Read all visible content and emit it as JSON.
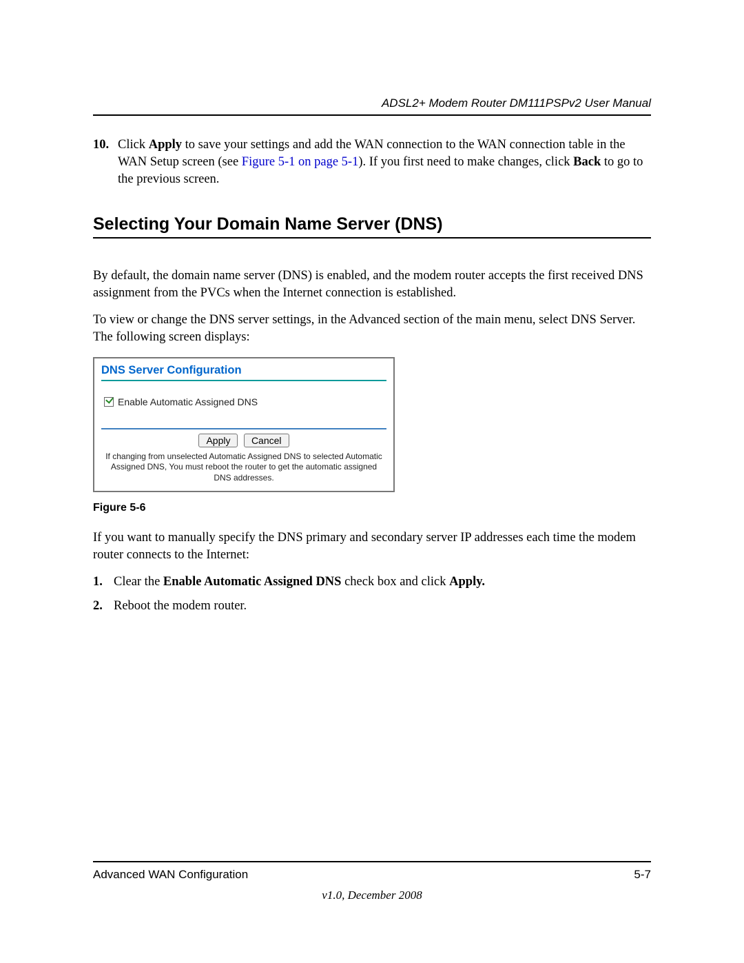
{
  "header": {
    "doc_title": "ADSL2+ Modem Router DM111PSPv2 User Manual"
  },
  "step10": {
    "num": "10.",
    "pre": "Click ",
    "apply": "Apply",
    "mid1": " to save your settings and add the WAN connection to the WAN connection table in the WAN Setup screen (see ",
    "link": "Figure 5-1 on page 5-1",
    "mid2": "). If you first need to make changes, click ",
    "back": "Back",
    "post": " to go to the previous screen."
  },
  "heading": "Selecting Your Domain Name Server (DNS)",
  "para1": "By default, the domain name server (DNS) is enabled, and the modem router accepts the first received DNS assignment from the PVCs when the Internet connection is established.",
  "para2": "To view or change the DNS server settings, in the Advanced section of the main menu, select DNS Server. The following screen displays:",
  "dns_panel": {
    "title": "DNS Server Configuration",
    "checkbox_label": "Enable Automatic Assigned DNS",
    "checkbox_checked": true,
    "apply_btn": "Apply",
    "cancel_btn": "Cancel",
    "note": "If changing from unselected Automatic Assigned DNS to selected Automatic Assigned DNS, You must reboot the router to get the automatic assigned DNS addresses.",
    "colors": {
      "title_color": "#0066cc",
      "teal_rule": "#0a9a9a",
      "blue_rule": "#4080c0",
      "check_color": "#2a8a2a",
      "border_color": "#777777"
    }
  },
  "figure_caption": "Figure 5-6",
  "para3": "If you want to manually specify the DNS primary and secondary server IP addresses each time the modem router connects to the Internet:",
  "list": {
    "item1": {
      "num": "1.",
      "pre": "Clear the ",
      "bold1": "Enable Automatic Assigned DNS",
      "mid": " check box and click ",
      "bold2": "Apply."
    },
    "item2": {
      "num": "2.",
      "text": "Reboot the modem router."
    }
  },
  "footer": {
    "section": "Advanced WAN Configuration",
    "page": "5-7",
    "version": "v1.0, December 2008"
  }
}
